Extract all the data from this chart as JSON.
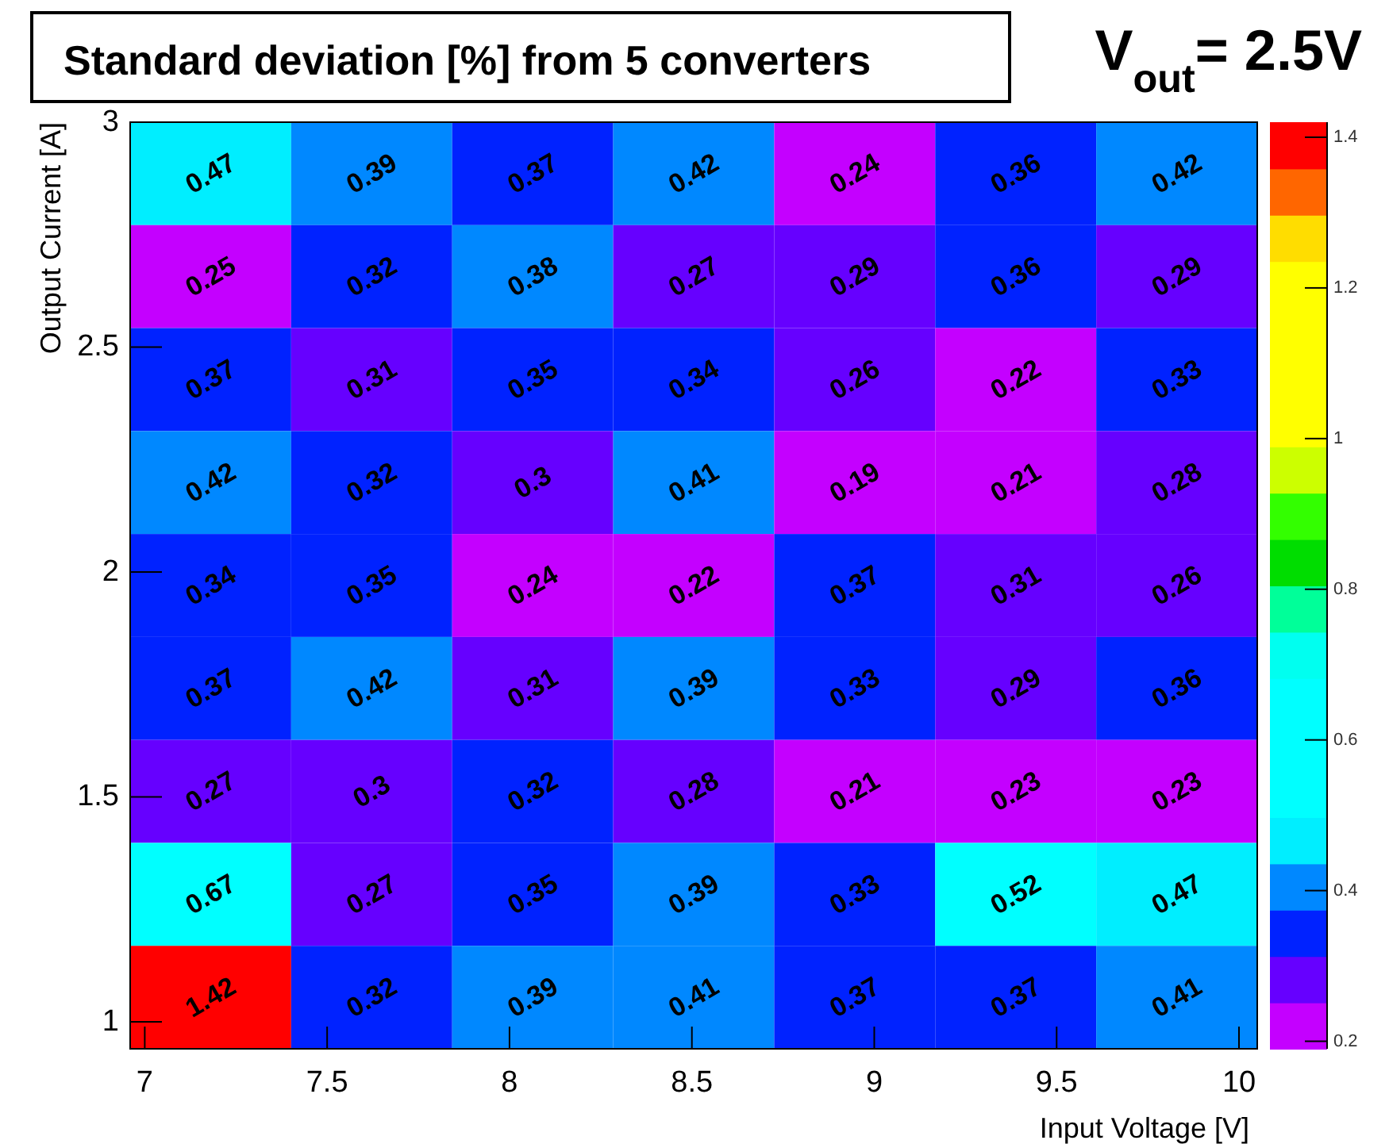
{
  "chart_data": {
    "type": "heatmap",
    "title": "Standard deviation [%]  from 5 converters",
    "annotations": [
      "V$_{out}$= 2.5V"
    ],
    "xlabel": "Input Voltage [V]",
    "ylabel": "Output Current [A]",
    "xlim": [
      6.96,
      10.05
    ],
    "ylim": [
      0.94,
      3
    ],
    "xticks": [
      7,
      7.5,
      8,
      8.5,
      9,
      9.5,
      10
    ],
    "yticks": [
      1,
      1.5,
      2,
      2.5,
      3
    ],
    "clim": [
      0.19,
      1.42
    ],
    "cticks": [
      0.2,
      0.4,
      0.6,
      0.8,
      1,
      1.2,
      1.4
    ],
    "data_labels": true,
    "cells": [
      [
        0.47,
        0.39,
        0.37,
        0.42,
        0.24,
        0.36,
        0.42
      ],
      [
        0.25,
        0.32,
        0.38,
        0.27,
        0.29,
        0.36,
        0.29
      ],
      [
        0.37,
        0.31,
        0.35,
        0.34,
        0.26,
        0.22,
        0.33
      ],
      [
        0.42,
        0.32,
        0.3,
        0.41,
        0.19,
        0.21,
        0.28
      ],
      [
        0.34,
        0.35,
        0.24,
        0.22,
        0.37,
        0.31,
        0.26
      ],
      [
        0.37,
        0.42,
        0.31,
        0.39,
        0.33,
        0.29,
        0.36
      ],
      [
        0.27,
        0.3,
        0.32,
        0.28,
        0.21,
        0.23,
        0.23
      ],
      [
        0.67,
        0.27,
        0.35,
        0.39,
        0.33,
        0.52,
        0.47
      ],
      [
        1.42,
        0.32,
        0.39,
        0.41,
        0.37,
        0.37,
        0.41
      ]
    ]
  }
}
